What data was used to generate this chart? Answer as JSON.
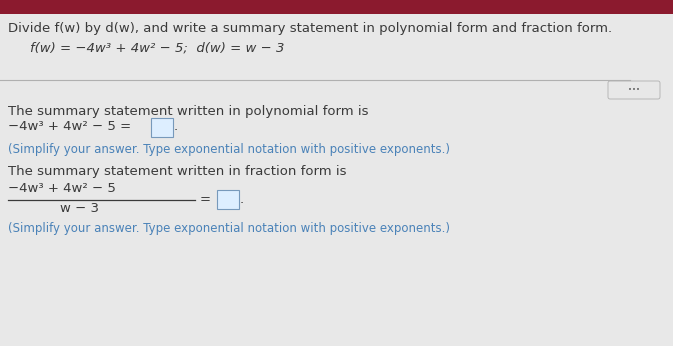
{
  "bg_color": "#e8e8e8",
  "top_bar_color": "#8b1a2e",
  "title_text": "Divide f(w) by d(w), and write a summary statement in polynomial form and fraction form.",
  "given_text": "f(w) = −4w³ + 4w² − 5;  d(w) = w − 3",
  "poly_intro": "The summary statement written in polynomial form is",
  "poly_eq": "−4w³ + 4w² − 5 =",
  "poly_note": "(Simplify your answer. Type exponential notation with positive exponents.)",
  "frac_intro": "The summary statement written in fraction form is",
  "frac_num": "−4w³ + 4w² − 5",
  "frac_den": "w − 3",
  "frac_note": "(Simplify your answer. Type exponential notation with positive exponents.)",
  "text_color": "#3a3a3a",
  "blue_color": "#4a82b8",
  "line_color": "#b0b0b0",
  "box_edge_color": "#7799bb",
  "box_fill_color": "#ddeeff",
  "dots_color": "#666666",
  "title_font_size": 9.5,
  "body_font_size": 9.5,
  "small_font_size": 8.5
}
